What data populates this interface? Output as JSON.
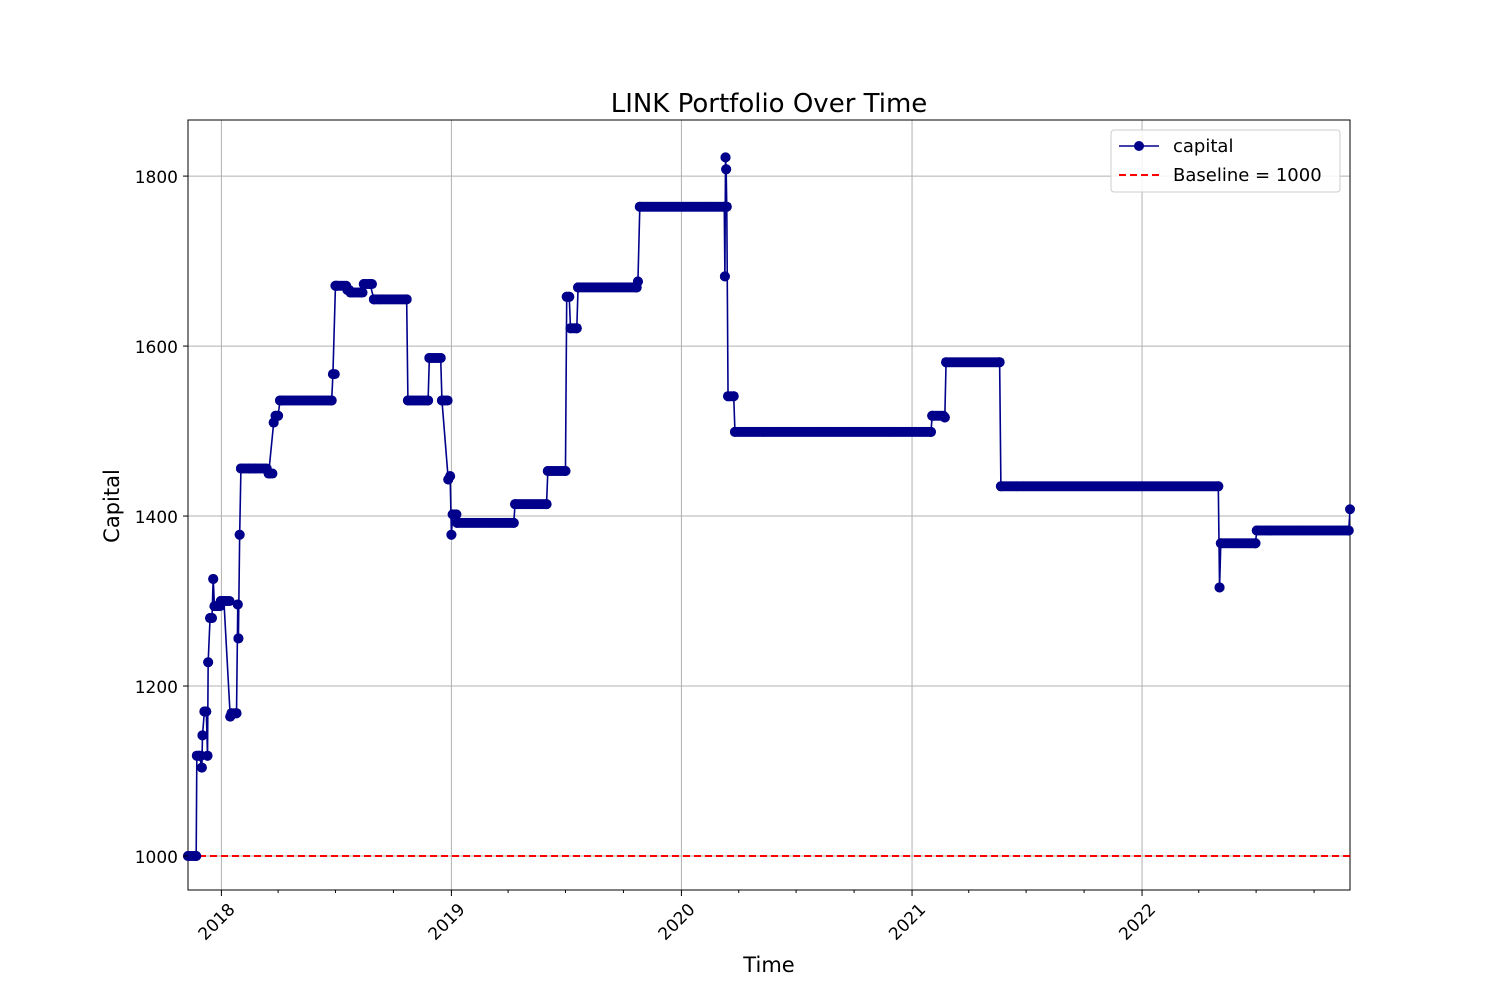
{
  "chart_data": {
    "type": "line",
    "title": "LINK Portfolio Over Time",
    "xlabel": "Time",
    "ylabel": "Capital",
    "x_ticks": [
      "2018",
      "2019",
      "2020",
      "2021",
      "2022"
    ],
    "y_ticks": [
      1000,
      1200,
      1400,
      1600,
      1800
    ],
    "xlim": [
      "2017-11-09",
      "2022-11-27"
    ],
    "ylim": [
      960,
      1866
    ],
    "grid": true,
    "legend_position": "top-right",
    "colors": {
      "capital": "#00008b",
      "baseline": "#ff0000"
    },
    "series": [
      {
        "name": "capital",
        "style": "line-with-markers",
        "x": [
          "2017-11-09",
          "2017-11-22",
          "2017-11-23",
          "2017-11-27",
          "2017-12-01",
          "2017-12-02",
          "2017-12-05",
          "2017-12-08",
          "2017-12-10",
          "2017-12-11",
          "2017-12-14",
          "2017-12-17",
          "2017-12-19",
          "2017-12-21",
          "2017-12-31",
          "2018-01-02",
          "2018-01-03",
          "2018-01-05",
          "2018-01-15",
          "2018-01-17",
          "2018-01-25",
          "2018-01-27",
          "2018-01-28",
          "2018-01-30",
          "2018-02-01",
          "2018-02-15",
          "2018-03-17",
          "2018-03-25",
          "2018-03-28",
          "2018-04-01",
          "2018-04-04",
          "2018-04-06",
          "2018-06-25",
          "2018-06-27",
          "2018-07-01",
          "2018-07-03",
          "2018-07-20",
          "2018-07-25",
          "2018-08-10",
          "2018-08-15",
          "2018-08-25",
          "2018-08-31",
          "2018-10-22",
          "2018-10-24",
          "2018-11-25",
          "2018-11-27",
          "2018-12-15",
          "2018-12-17",
          "2018-12-27",
          "2018-12-30",
          "2019-01-01",
          "2019-01-03",
          "2019-01-10",
          "2019-04-10",
          "2019-04-12",
          "2019-06-01",
          "2019-06-03",
          "2019-07-01",
          "2019-07-03",
          "2019-07-07",
          "2019-07-09",
          "2019-07-19",
          "2019-07-21",
          "2019-10-22",
          "2019-10-24",
          "2019-10-27",
          "2020-03-09",
          "2020-03-10",
          "2020-03-11",
          "2020-03-12",
          "2020-03-13",
          "2020-03-15",
          "2020-03-24",
          "2020-03-26",
          "2021-01-31",
          "2021-02-02",
          "2021-02-22",
          "2021-02-24",
          "2021-05-20",
          "2021-05-22",
          "2022-05-02",
          "2022-05-04",
          "2022-05-06",
          "2022-06-30",
          "2022-07-02",
          "2022-11-25",
          "2022-11-27"
        ],
        "y": [
          1000,
          1000,
          1118,
          1118,
          1104,
          1142,
          1170,
          1170,
          1118,
          1228,
          1280,
          1280,
          1326,
          1294,
          1300,
          1300,
          1300,
          1300,
          1164,
          1168,
          1168,
          1296,
          1256,
          1378,
          1456,
          1456,
          1450,
          1510,
          1518,
          1518,
          1536,
          1536,
          1536,
          1567,
          1671,
          1671,
          1666,
          1663,
          1663,
          1673,
          1673,
          1655,
          1655,
          1536,
          1536,
          1586,
          1586,
          1536,
          1443,
          1447,
          1378,
          1402,
          1392,
          1392,
          1414,
          1414,
          1453,
          1453,
          1658,
          1658,
          1621,
          1621,
          1669,
          1669,
          1676,
          1764,
          1764,
          1682,
          1822,
          1808,
          1764,
          1541,
          1541,
          1499,
          1499,
          1518,
          1516,
          1581,
          1581,
          1435,
          1435,
          1316,
          1368,
          1368,
          1383,
          1383,
          1408
        ]
      },
      {
        "name": "Baseline = 1000",
        "style": "dashed",
        "y": 1000
      }
    ]
  }
}
